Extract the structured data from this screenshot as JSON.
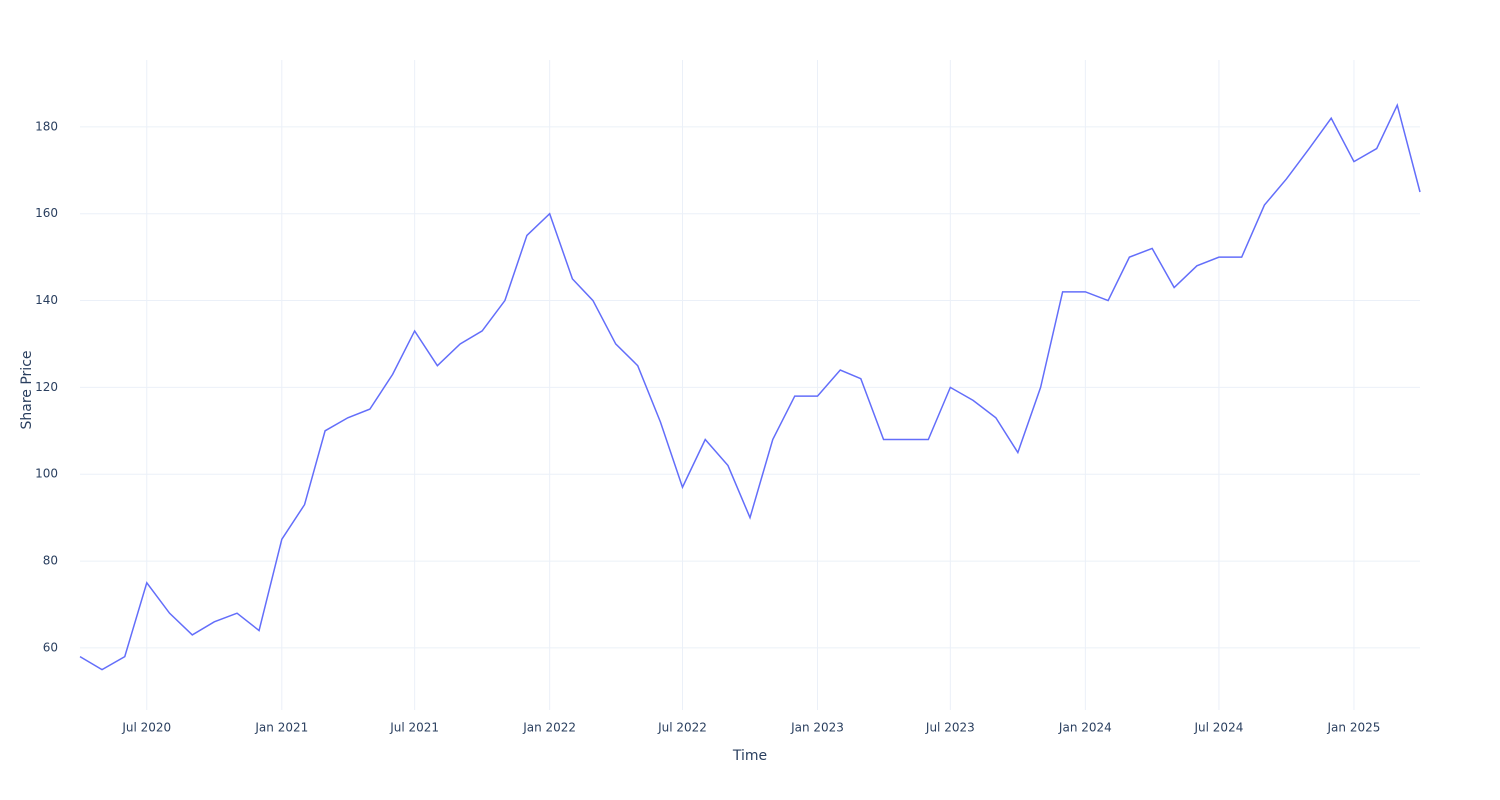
{
  "chart_data": {
    "type": "line",
    "xlabel": "Time",
    "ylabel": "Share Price",
    "x": [
      "2020-04",
      "2020-05",
      "2020-06",
      "2020-07",
      "2020-08",
      "2020-09",
      "2020-10",
      "2020-11",
      "2020-12",
      "2021-01",
      "2021-02",
      "2021-03",
      "2021-04",
      "2021-05",
      "2021-06",
      "2021-07",
      "2021-08",
      "2021-09",
      "2021-10",
      "2021-11",
      "2021-12",
      "2022-01",
      "2022-02",
      "2022-03",
      "2022-04",
      "2022-05",
      "2022-06",
      "2022-07",
      "2022-08",
      "2022-09",
      "2022-10",
      "2022-11",
      "2022-12",
      "2023-01",
      "2023-02",
      "2023-03",
      "2023-04",
      "2023-05",
      "2023-06",
      "2023-07",
      "2023-08",
      "2023-09",
      "2023-10",
      "2023-11",
      "2023-12",
      "2024-01",
      "2024-02",
      "2024-03",
      "2024-04",
      "2024-05",
      "2024-06",
      "2024-07",
      "2024-08",
      "2024-09",
      "2024-10",
      "2024-11",
      "2024-12",
      "2025-01",
      "2025-02",
      "2025-03",
      "2025-04"
    ],
    "series": [
      {
        "name": "Share Price",
        "color": "#636efa",
        "values": [
          58,
          55,
          58,
          75,
          68,
          63,
          66,
          68,
          64,
          85,
          93,
          110,
          113,
          115,
          123,
          133,
          125,
          130,
          133,
          140,
          155,
          160,
          145,
          140,
          130,
          125,
          112,
          97,
          108,
          102,
          90,
          108,
          118,
          118,
          124,
          122,
          108,
          108,
          108,
          120,
          117,
          113,
          105,
          120,
          142,
          142,
          140,
          150,
          152,
          143,
          148,
          150,
          150,
          162,
          168,
          175,
          182,
          172,
          175,
          185,
          165
        ]
      }
    ],
    "xlim": [
      "2020-04",
      "2025-04"
    ],
    "xticks": [
      {
        "value": "2020-07",
        "label": "Jul 2020"
      },
      {
        "value": "2021-01",
        "label": "Jan 2021"
      },
      {
        "value": "2021-07",
        "label": "Jul 2021"
      },
      {
        "value": "2022-01",
        "label": "Jan 2022"
      },
      {
        "value": "2022-07",
        "label": "Jul 2022"
      },
      {
        "value": "2023-01",
        "label": "Jan 2023"
      },
      {
        "value": "2023-07",
        "label": "Jul 2023"
      },
      {
        "value": "2024-01",
        "label": "Jan 2024"
      },
      {
        "value": "2024-07",
        "label": "Jul 2024"
      },
      {
        "value": "2025-01",
        "label": "Jan 2025"
      }
    ],
    "ylim": [
      45.7,
      195.4
    ],
    "yticks": [
      60,
      80,
      100,
      120,
      140,
      160,
      180
    ],
    "grid": true
  }
}
